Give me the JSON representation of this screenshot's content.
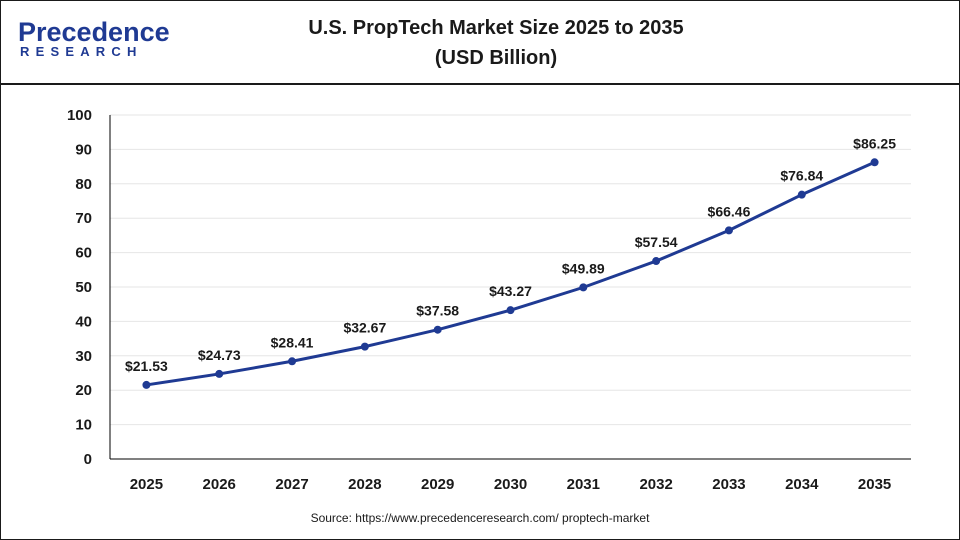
{
  "brand": {
    "logo_main": "Precedence",
    "logo_sub": "RESEARCH"
  },
  "chart_data": {
    "type": "line",
    "title": "U.S. PropTech Market Size 2025 to 2035",
    "subtitle": "(USD Billion)",
    "xlabel": "",
    "ylabel": "",
    "categories": [
      "2025",
      "2026",
      "2027",
      "2028",
      "2029",
      "2030",
      "2031",
      "2032",
      "2033",
      "2034",
      "2035"
    ],
    "series": [
      {
        "values": [
          21.53,
          24.73,
          28.41,
          32.67,
          37.58,
          43.27,
          49.89,
          57.54,
          66.46,
          76.84,
          86.25
        ],
        "labels": [
          "$21.53",
          "$24.73",
          "$28.41",
          "$32.67",
          "$37.58",
          "$43.27",
          "$49.89",
          "$57.54",
          "$66.46",
          "$76.84",
          "$86.25"
        ]
      }
    ],
    "ylim": [
      0,
      100
    ],
    "yticks": [
      0,
      10,
      20,
      30,
      40,
      50,
      60,
      70,
      80,
      90,
      100
    ],
    "grid": true,
    "colors": {
      "line": "#1f3a93",
      "marker": "#1f3a93",
      "grid": "#e6e6e6",
      "axis": "#000000"
    }
  },
  "source": "Source: https://www.precedenceresearch.com/ proptech-market"
}
